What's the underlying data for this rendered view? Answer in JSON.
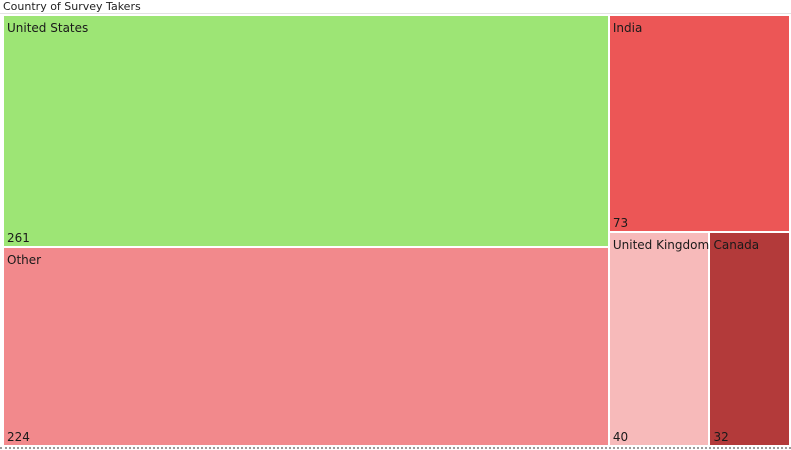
{
  "chart_data": {
    "type": "treemap",
    "title": "Country of Survey Takers",
    "items": [
      {
        "name": "United States",
        "value": 261,
        "color": "#9de575"
      },
      {
        "name": "Other",
        "value": 224,
        "color": "#f2898c"
      },
      {
        "name": "India",
        "value": 73,
        "color": "#ec5656"
      },
      {
        "name": "United Kingdom",
        "value": 40,
        "color": "#f7baba"
      },
      {
        "name": "Canada",
        "value": 32,
        "color": "#b33a3a"
      }
    ]
  }
}
